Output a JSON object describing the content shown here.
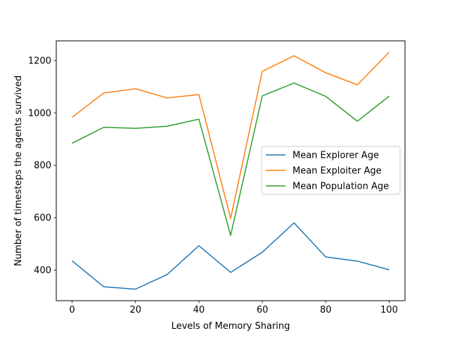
{
  "chart_data": {
    "type": "line",
    "title": "",
    "xlabel": "Levels of Memory Sharing",
    "ylabel": "Number of timesteps the agents survived",
    "x": [
      0,
      10,
      20,
      30,
      40,
      50,
      60,
      70,
      80,
      90,
      100
    ],
    "xlim": [
      -5,
      105
    ],
    "ylim": [
      283,
      1275
    ],
    "xticks": [
      0,
      20,
      40,
      60,
      80,
      100
    ],
    "yticks": [
      400,
      600,
      800,
      1000,
      1200
    ],
    "grid": false,
    "legend_position": "center-right",
    "series": [
      {
        "name": "Mean Explorer Age",
        "color": "#1f77b4",
        "values": [
          435,
          336,
          327,
          383,
          493,
          391,
          468,
          580,
          450,
          434,
          401
        ]
      },
      {
        "name": "Mean Exploiter Age",
        "color": "#ff7f0e",
        "values": [
          983,
          1076,
          1092,
          1057,
          1070,
          597,
          1159,
          1218,
          1153,
          1107,
          1232
        ]
      },
      {
        "name": "Mean Population Age",
        "color": "#2ca02c",
        "values": [
          884,
          945,
          941,
          949,
          976,
          532,
          1065,
          1114,
          1063,
          968,
          1064
        ]
      }
    ]
  }
}
